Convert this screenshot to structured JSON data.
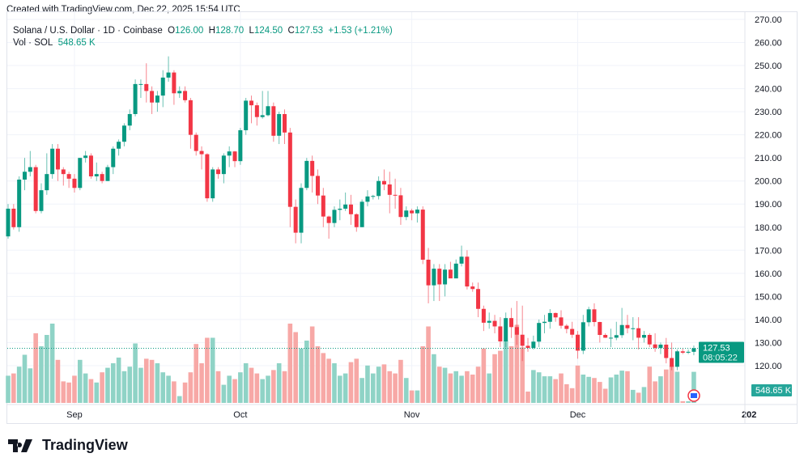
{
  "credit": "Created with TradingView.com, Dec 22, 2025 15:54 UTC",
  "header": {
    "symbol": "Solana / U.S. Dollar · 1D · Coinbase",
    "o_label": "O",
    "o": "126.00",
    "h_label": "H",
    "h": "128.70",
    "l_label": "L",
    "l": "124.50",
    "c_label": "C",
    "c": "127.53",
    "change": "+1.53 (+1.21%)",
    "vol_label": "Vol · SOL",
    "vol": "548.65 K"
  },
  "price_tag": {
    "price": "127.53",
    "countdown": "08:05:22"
  },
  "volume_tag": "548.65 K",
  "logo": "TradingView",
  "colors": {
    "up": "#089981",
    "down": "#f23645",
    "up_vol": "#8fd3c6",
    "down_vol": "#f7a8a6"
  },
  "chart_data": {
    "type": "candlestick",
    "title": "Solana / U.S. Dollar · 1D · Coinbase",
    "start_date": "Aug 20, 2025",
    "end_date": "Dec 22, 2025",
    "ylim": [
      115,
      272
    ],
    "y_ticks": [
      "120.00",
      "130.00",
      "140.00",
      "150.00",
      "160.00",
      "170.00",
      "180.00",
      "190.00",
      "200.00",
      "210.00",
      "220.00",
      "230.00",
      "240.00",
      "250.00",
      "260.00",
      "270.00"
    ],
    "x_ticks": [
      {
        "label": "Sep",
        "index": 12
      },
      {
        "label": "Oct",
        "index": 42
      },
      {
        "label": "Nov",
        "index": 73
      },
      {
        "label": "Dec",
        "index": 103
      },
      {
        "label": "202",
        "index": 134
      }
    ],
    "columns": [
      "open",
      "high",
      "low",
      "close",
      "volume_k"
    ],
    "candles": [
      [
        176,
        190,
        175,
        188,
        480
      ],
      [
        188,
        190,
        179,
        180,
        520
      ],
      [
        180,
        202,
        178,
        200.6,
        640
      ],
      [
        200.6,
        210,
        196,
        204,
        850
      ],
      [
        204,
        213,
        202,
        206,
        610
      ],
      [
        206,
        207,
        186,
        187,
        1230
      ],
      [
        187,
        199,
        186,
        196,
        1000
      ],
      [
        196,
        212,
        194,
        203,
        1200
      ],
      [
        203,
        216,
        201,
        214,
        1400
      ],
      [
        214,
        216,
        200,
        205,
        760
      ],
      [
        205,
        206,
        198,
        203,
        380
      ],
      [
        203,
        204,
        197,
        201,
        360
      ],
      [
        201,
        203,
        195,
        197,
        480
      ],
      [
        197,
        210,
        196,
        210,
        760
      ],
      [
        210,
        213,
        208,
        211,
        520
      ],
      [
        211,
        212,
        201,
        202,
        420
      ],
      [
        202,
        208,
        200,
        203,
        360
      ],
      [
        203,
        204,
        199,
        200,
        540
      ],
      [
        200,
        207,
        200,
        206,
        620
      ],
      [
        206,
        215,
        203,
        214,
        700
      ],
      [
        214,
        218,
        211,
        217,
        800
      ],
      [
        217,
        225,
        215,
        224,
        560
      ],
      [
        224,
        231,
        222,
        229,
        640
      ],
      [
        229,
        244,
        228,
        242,
        1050
      ],
      [
        242,
        244,
        236,
        242,
        620
      ],
      [
        242,
        251,
        234,
        239,
        780
      ],
      [
        239,
        241,
        229,
        234,
        760
      ],
      [
        234,
        239,
        230,
        237,
        700
      ],
      [
        237,
        248,
        232,
        244.8,
        540
      ],
      [
        244.8,
        254,
        243,
        247,
        480
      ],
      [
        247,
        248,
        233,
        238,
        380
      ],
      [
        238,
        241,
        236,
        239,
        120
      ],
      [
        239,
        241,
        234,
        235,
        360
      ],
      [
        235,
        236,
        214,
        220,
        540
      ],
      [
        220,
        221,
        211,
        213,
        1040
      ],
      [
        213,
        215,
        205,
        211.6,
        700
      ],
      [
        211.6,
        212,
        191,
        192.5,
        1150
      ],
      [
        192.5,
        206,
        191,
        205,
        1150
      ],
      [
        205,
        206,
        201,
        203,
        560
      ],
      [
        203,
        212,
        199,
        211,
        320
      ],
      [
        211,
        215,
        206,
        212.8,
        480
      ],
      [
        212.8,
        213,
        206,
        208.6,
        420
      ],
      [
        208.6,
        223,
        207,
        222,
        540
      ],
      [
        222,
        236,
        220,
        234.8,
        700
      ],
      [
        234.8,
        237,
        225,
        232.8,
        620
      ],
      [
        232.8,
        234,
        224,
        227.7,
        520
      ],
      [
        227.7,
        239,
        227,
        228.5,
        420
      ],
      [
        228.5,
        239,
        228,
        232.4,
        480
      ],
      [
        232.4,
        234,
        217,
        219.6,
        580
      ],
      [
        219.6,
        230,
        216,
        229,
        700
      ],
      [
        229,
        231,
        216,
        221,
        560
      ],
      [
        221,
        223,
        180,
        188.8,
        1400
      ],
      [
        188.8,
        192,
        173,
        177.6,
        1250
      ],
      [
        177.6,
        199,
        173,
        197,
        960
      ],
      [
        197,
        210,
        196,
        208.7,
        1100
      ],
      [
        208.7,
        211,
        195,
        202.2,
        1350
      ],
      [
        202.2,
        205,
        190,
        193.7,
        1000
      ],
      [
        193.7,
        197,
        180,
        184.6,
        880
      ],
      [
        184.6,
        185,
        175,
        181.8,
        780
      ],
      [
        181.8,
        189,
        180,
        187.5,
        700
      ],
      [
        187.5,
        192,
        183,
        188,
        480
      ],
      [
        188,
        195,
        187,
        189.8,
        520
      ],
      [
        189.8,
        194,
        181,
        185.6,
        720
      ],
      [
        185.6,
        186,
        178,
        180,
        780
      ],
      [
        180,
        192,
        180,
        191,
        440
      ],
      [
        191,
        196,
        189,
        193.3,
        660
      ],
      [
        193.3,
        194,
        192,
        193.5,
        520
      ],
      [
        193.5,
        202,
        192,
        200,
        640
      ],
      [
        200,
        205,
        196,
        198.5,
        680
      ],
      [
        198.5,
        204,
        186,
        194,
        560
      ],
      [
        194,
        201,
        188,
        193.8,
        520
      ],
      [
        193.8,
        197,
        181,
        184.4,
        760
      ],
      [
        184.4,
        189,
        183,
        187.2,
        440
      ],
      [
        187.2,
        188,
        183,
        186,
        220
      ],
      [
        186,
        189,
        182,
        187.6,
        220
      ],
      [
        187.6,
        189,
        164,
        165.9,
        1000
      ],
      [
        165.9,
        171,
        147,
        154.8,
        1350
      ],
      [
        154.8,
        164,
        148,
        162,
        860
      ],
      [
        162,
        164,
        148,
        155.2,
        640
      ],
      [
        155.2,
        164,
        150,
        161.6,
        620
      ],
      [
        161.6,
        165,
        158,
        157.8,
        520
      ],
      [
        157.8,
        166,
        158,
        164.2,
        560
      ],
      [
        164.2,
        172,
        163,
        167.2,
        480
      ],
      [
        167.2,
        170,
        153,
        154.3,
        560
      ],
      [
        154.3,
        156,
        152,
        153.2,
        500
      ],
      [
        153.2,
        156,
        141,
        144.6,
        640
      ],
      [
        144.6,
        146,
        135,
        138.6,
        960
      ],
      [
        138.6,
        143,
        136,
        139.4,
        520
      ],
      [
        139.4,
        142,
        134,
        137,
        860
      ],
      [
        137,
        141,
        128,
        130.5,
        920
      ],
      [
        130.5,
        143,
        128,
        140.6,
        1100
      ],
      [
        140.6,
        145,
        132,
        136.7,
        1000
      ],
      [
        136.7,
        148,
        129,
        133.4,
        1380
      ],
      [
        133.4,
        146,
        122,
        128.6,
        980
      ],
      [
        128.6,
        132,
        126,
        127.7,
        200
      ],
      [
        127.7,
        133,
        127,
        130.4,
        580
      ],
      [
        130.4,
        140,
        128,
        138.5,
        540
      ],
      [
        138.5,
        142,
        134,
        139,
        470
      ],
      [
        139,
        144.5,
        136,
        142.8,
        470
      ],
      [
        142.8,
        143,
        139,
        140.9,
        420
      ],
      [
        140.9,
        144,
        136,
        137.3,
        520
      ],
      [
        137.3,
        138,
        134,
        135.9,
        330
      ],
      [
        135.9,
        139,
        132,
        133.4,
        260
      ],
      [
        133.4,
        135,
        123,
        126.5,
        660
      ],
      [
        126.5,
        142,
        125,
        138.8,
        500
      ],
      [
        138.8,
        145.5,
        137,
        144.4,
        460
      ],
      [
        144.4,
        147,
        137,
        138.9,
        440
      ],
      [
        138.9,
        139,
        130,
        133.3,
        370
      ],
      [
        133.3,
        134,
        132,
        132.1,
        250
      ],
      [
        132.1,
        136,
        128,
        132.1,
        450
      ],
      [
        132.1,
        139,
        131,
        133.2,
        500
      ],
      [
        133.2,
        145,
        132,
        137.6,
        570
      ],
      [
        137.6,
        142,
        134,
        136.2,
        560
      ],
      [
        136.2,
        141,
        131,
        136.2,
        230
      ],
      [
        136.2,
        141,
        127,
        132.1,
        180
      ],
      [
        132.1,
        135,
        130,
        133.3,
        280
      ],
      [
        133.3,
        134,
        128,
        129.2,
        640
      ],
      [
        129.2,
        134,
        126,
        127.7,
        380
      ],
      [
        127.7,
        130,
        125,
        129.1,
        470
      ],
      [
        129.1,
        132,
        121,
        123.3,
        590
      ],
      [
        123.3,
        130,
        118,
        119.5,
        660
      ],
      [
        119.5,
        127,
        118,
        126.2,
        550
      ],
      [
        126.2,
        127.5,
        125,
        125.6,
        30
      ],
      [
        125.6,
        127,
        125,
        126,
        30
      ],
      [
        126,
        128.7,
        124.5,
        127.53,
        548.65
      ]
    ]
  }
}
